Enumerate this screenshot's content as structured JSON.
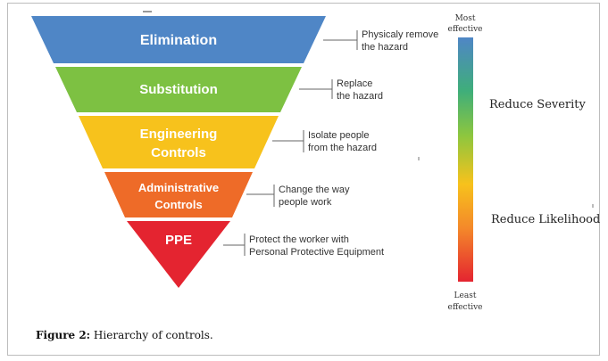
{
  "tiers": [
    {
      "label": "Elimination",
      "description": [
        "Physicaly remove",
        "the hazard"
      ],
      "color": "#4f86c6"
    },
    {
      "label": "Substitution",
      "description": [
        "Replace",
        "the hazard"
      ],
      "color": "#7dc142"
    },
    {
      "label_lines": [
        "Engineering",
        "Controls"
      ],
      "description": [
        "Isolate people",
        "from the hazard"
      ],
      "color": "#f7c21c"
    },
    {
      "label_lines": [
        "Administrative",
        "Controls"
      ],
      "description": [
        "Change the way",
        "people work"
      ],
      "color": "#ee6b28"
    },
    {
      "label": "PPE",
      "description": [
        "Protect the worker with",
        "Personal Protective Equipment"
      ],
      "color": "#e42430"
    }
  ],
  "effectiveness_bar": {
    "top_lines": [
      "Most",
      "effective"
    ],
    "bottom_lines": [
      "Least",
      "effective"
    ],
    "gradient": [
      "#4f86c6",
      "#3fae7a",
      "#8cc63f",
      "#f7c21c",
      "#f4892a",
      "#e42430"
    ]
  },
  "labels": {
    "reduce_severity": "Reduce Severity",
    "reduce_likelihood": "Reduce Likelihood"
  },
  "caption": {
    "prefix": "Figure 2:",
    "text": " Hierarchy of controls."
  }
}
